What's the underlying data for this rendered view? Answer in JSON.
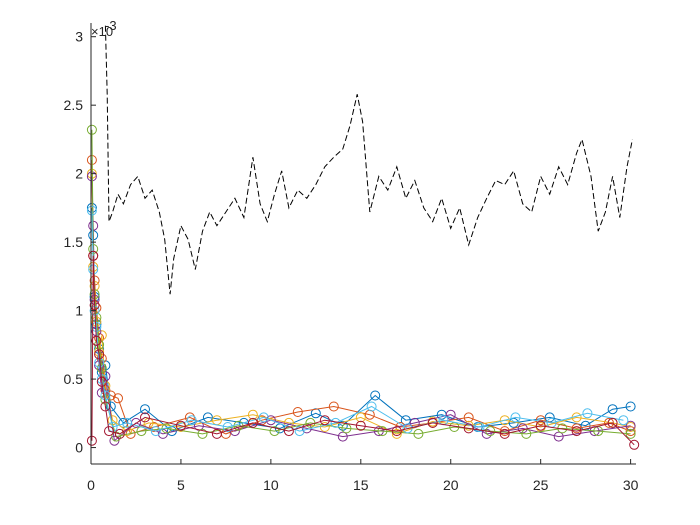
{
  "chart_data": {
    "type": "scatter",
    "title": "",
    "xlabel": "",
    "ylabel": "",
    "xlim": [
      0,
      30.3
    ],
    "ylim": [
      -0.00012,
      0.0031
    ],
    "grid": false,
    "legend": "none",
    "y_exponent_label": "×10",
    "y_exponent_power": "-3",
    "x_ticks": [
      0,
      5,
      10,
      15,
      20,
      25,
      30
    ],
    "x_tick_labels": [
      "0",
      "5",
      "10",
      "15",
      "20",
      "25",
      "30"
    ],
    "y_ticks": [
      0,
      0.0005,
      0.001,
      0.0015,
      0.002,
      0.0025,
      0.003
    ],
    "y_tick_labels": [
      "0",
      "0.5",
      "1",
      "1.5",
      "2",
      "2.5",
      "3"
    ],
    "reference_line": {
      "style": "dashed",
      "color": "#000000",
      "x": [
        0.8,
        0.9,
        1.0,
        1.2,
        1.5,
        1.8,
        2.2,
        2.6,
        3.0,
        3.4,
        3.8,
        4.1,
        4.4,
        4.6,
        5.0,
        5.4,
        5.8,
        6.2,
        6.6,
        7.0,
        7.5,
        8.0,
        8.5,
        9.0,
        9.4,
        9.8,
        10.2,
        10.6,
        11.0,
        11.5,
        12.0,
        12.5,
        13.0,
        13.5,
        14.0,
        14.4,
        14.8,
        15.1,
        15.5,
        16.0,
        16.5,
        17.0,
        17.5,
        18.0,
        18.5,
        19.0,
        19.5,
        20.0,
        20.5,
        21.0,
        21.5,
        22.0,
        22.5,
        23.0,
        23.5,
        24.0,
        24.5,
        25.0,
        25.5,
        26.0,
        26.5,
        27.0,
        27.3,
        27.8,
        28.2,
        28.6,
        29.0,
        29.4,
        29.8,
        30.1
      ],
      "y": [
        0.00308,
        0.00258,
        0.00165,
        0.00172,
        0.00185,
        0.00178,
        0.00192,
        0.00198,
        0.00182,
        0.00188,
        0.00172,
        0.00152,
        0.00112,
        0.00138,
        0.00162,
        0.00152,
        0.0013,
        0.00158,
        0.00172,
        0.00162,
        0.00172,
        0.00182,
        0.00168,
        0.00212,
        0.00178,
        0.00165,
        0.00185,
        0.00202,
        0.00175,
        0.00188,
        0.00182,
        0.00192,
        0.00205,
        0.00212,
        0.00218,
        0.00235,
        0.00258,
        0.00238,
        0.00172,
        0.00198,
        0.00188,
        0.00205,
        0.00182,
        0.00195,
        0.00175,
        0.00165,
        0.00182,
        0.0016,
        0.00175,
        0.00148,
        0.00168,
        0.00182,
        0.00195,
        0.00192,
        0.00202,
        0.00178,
        0.00172,
        0.00198,
        0.00185,
        0.00205,
        0.00192,
        0.00215,
        0.00225,
        0.00198,
        0.00158,
        0.00172,
        0.00198,
        0.00168,
        0.00205,
        0.00225
      ]
    },
    "series": [
      {
        "color": "#0072BD",
        "x": [
          0.05,
          0.12,
          0.2,
          0.3,
          0.45,
          0.6,
          0.8,
          1.1,
          1.8,
          3.0,
          4.5,
          6.5,
          8.5,
          10.5,
          12.5,
          14.0,
          15.8,
          17.5,
          19.5,
          21.5,
          23.5,
          25.5,
          27.5,
          29.0,
          30.0
        ],
        "y": [
          0.00175,
          0.00155,
          0.0011,
          0.0009,
          0.00072,
          0.00055,
          0.0006,
          0.0003,
          0.00018,
          0.00028,
          0.00012,
          0.00022,
          0.00018,
          0.00014,
          0.00025,
          0.00016,
          0.00038,
          0.0002,
          0.00024,
          0.00015,
          0.00018,
          0.00022,
          0.00016,
          0.00028,
          0.0003
        ]
      },
      {
        "color": "#D95319",
        "x": [
          0.05,
          0.12,
          0.2,
          0.3,
          0.45,
          0.6,
          0.8,
          1.1,
          1.5,
          2.2,
          3.5,
          5.5,
          7.5,
          9.5,
          11.5,
          13.5,
          15.5,
          17.2,
          19.0,
          21.0,
          23.0,
          25.0,
          27.0,
          28.8,
          30.0
        ],
        "y": [
          0.0021,
          0.0014,
          0.00122,
          0.00102,
          0.0008,
          0.00065,
          0.00042,
          0.00038,
          0.00036,
          0.0001,
          0.00015,
          0.00022,
          0.0001,
          0.0002,
          0.00026,
          0.0003,
          0.00024,
          0.00015,
          0.00018,
          0.00022,
          0.00012,
          0.0002,
          0.00014,
          0.00018,
          0.00012
        ]
      },
      {
        "color": "#EDB120",
        "x": [
          0.05,
          0.12,
          0.2,
          0.3,
          0.45,
          0.6,
          0.8,
          1.2,
          2.0,
          3.2,
          5.0,
          7.0,
          9.0,
          11.0,
          13.0,
          15.0,
          17.0,
          19.0,
          21.0,
          23.0,
          25.0,
          27.0,
          29.0,
          30.0
        ],
        "y": [
          0.002,
          0.00132,
          0.00118,
          0.00092,
          0.0007,
          0.00082,
          0.00045,
          0.0002,
          0.00012,
          0.00018,
          0.00015,
          0.0002,
          0.00024,
          0.00018,
          0.00015,
          0.00022,
          0.0001,
          0.00019,
          0.00016,
          0.0002,
          0.00015,
          0.00022,
          0.00018,
          0.00015
        ]
      },
      {
        "color": "#7E2F8E",
        "x": [
          0.05,
          0.12,
          0.2,
          0.3,
          0.45,
          0.6,
          0.8,
          1.3,
          2.5,
          4.0,
          6.0,
          8.0,
          10.0,
          12.0,
          14.0,
          16.0,
          18.0,
          20.0,
          22.0,
          24.0,
          26.0,
          28.0,
          30.0
        ],
        "y": [
          0.00198,
          0.00162,
          0.00108,
          0.00085,
          0.0006,
          0.0004,
          0.00052,
          5e-05,
          0.00018,
          0.0001,
          0.00016,
          0.00012,
          0.0002,
          0.00014,
          8e-05,
          0.00012,
          0.00018,
          0.00024,
          0.0001,
          0.00014,
          8e-05,
          0.00012,
          0.00016
        ]
      },
      {
        "color": "#77AC30",
        "x": [
          0.05,
          0.12,
          0.2,
          0.3,
          0.45,
          0.6,
          0.8,
          1.4,
          2.8,
          4.2,
          6.2,
          8.2,
          10.2,
          12.2,
          14.2,
          16.2,
          18.2,
          20.2,
          22.2,
          24.2,
          26.2,
          28.2,
          30.0
        ],
        "y": [
          0.00232,
          0.00145,
          0.00112,
          0.00095,
          0.00075,
          0.00058,
          0.00035,
          8e-05,
          0.00012,
          0.00014,
          0.0001,
          0.00016,
          0.00012,
          0.00018,
          0.00014,
          0.00012,
          0.0001,
          0.00015,
          0.00012,
          0.0001,
          0.00014,
          0.00012,
          0.0001
        ]
      },
      {
        "color": "#4DBEEE",
        "x": [
          0.05,
          0.12,
          0.2,
          0.3,
          0.45,
          0.6,
          0.8,
          1.2,
          2.0,
          3.6,
          5.6,
          7.6,
          9.6,
          11.6,
          13.6,
          15.6,
          17.6,
          19.6,
          21.6,
          23.6,
          25.6,
          27.6,
          29.6
        ],
        "y": [
          0.00173,
          0.0013,
          0.001,
          0.00088,
          0.00062,
          0.0005,
          0.00038,
          0.00015,
          0.00018,
          0.00012,
          0.0002,
          0.00015,
          0.00022,
          0.00012,
          0.00018,
          0.0003,
          0.00014,
          0.0002,
          0.00015,
          0.00022,
          0.00018,
          0.00025,
          0.0002
        ]
      },
      {
        "color": "#A2142F",
        "x": [
          0.05,
          0.12,
          0.2,
          0.3,
          0.45,
          0.6,
          0.8,
          1.0,
          1.6,
          3.0,
          5.0,
          7.0,
          9.0,
          11.0,
          13.0,
          15.0,
          17.0,
          19.0,
          21.0,
          23.0,
          25.0,
          27.0,
          29.0,
          30.2
        ],
        "y": [
          5e-05,
          0.0014,
          0.00104,
          0.00078,
          0.00068,
          0.00048,
          0.0003,
          0.00012,
          0.0001,
          0.00022,
          0.00016,
          0.0001,
          0.00018,
          0.00012,
          0.0002,
          0.00016,
          0.00012,
          0.00018,
          0.00014,
          0.0001,
          0.00016,
          0.00012,
          0.00018,
          2e-05
        ]
      }
    ]
  }
}
